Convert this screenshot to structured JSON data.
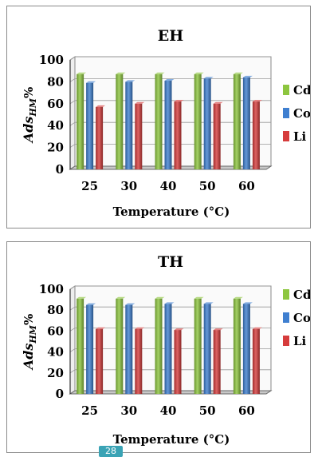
{
  "chart_data": [
    {
      "type": "bar",
      "title": "EH",
      "categories": [
        "25",
        "30",
        "40",
        "50",
        "60"
      ],
      "series": [
        {
          "name": "Cd",
          "values": [
            87,
            87,
            87,
            87,
            87
          ],
          "color": "#8dc63f"
        },
        {
          "name": "Co",
          "values": [
            79,
            80,
            81,
            83,
            84
          ],
          "color": "#3f7fd0"
        },
        {
          "name": "Li",
          "values": [
            57,
            60,
            62,
            60,
            62
          ],
          "color": "#d63c3c"
        }
      ],
      "ylim": [
        0,
        100
      ],
      "yticks": [
        "0",
        "20",
        "40",
        "60",
        "80",
        "100"
      ],
      "xlabel": "Temperature (°C)",
      "ylabel": "Ads",
      "ylabel_subscript": "HM",
      "ylabel_suffix": "%",
      "legend_position": "right",
      "grid": true
    },
    {
      "type": "bar",
      "title": "TH",
      "categories": [
        "25",
        "30",
        "40",
        "50",
        "60"
      ],
      "series": [
        {
          "name": "Cd",
          "values": [
            91,
            91,
            91,
            91,
            91
          ],
          "color": "#8dc63f"
        },
        {
          "name": "Co",
          "values": [
            85,
            85,
            86,
            86,
            86
          ],
          "color": "#3f7fd0"
        },
        {
          "name": "Li",
          "values": [
            62,
            62,
            61,
            61,
            62
          ],
          "color": "#d63c3c"
        }
      ],
      "ylim": [
        0,
        100
      ],
      "yticks": [
        "0",
        "20",
        "40",
        "60",
        "80",
        "100"
      ],
      "xlabel": "Temperature (°C)",
      "ylabel": "Ads",
      "ylabel_subscript": "HM",
      "ylabel_suffix": "%",
      "legend_position": "right",
      "grid": true
    }
  ],
  "page_badge": "28"
}
